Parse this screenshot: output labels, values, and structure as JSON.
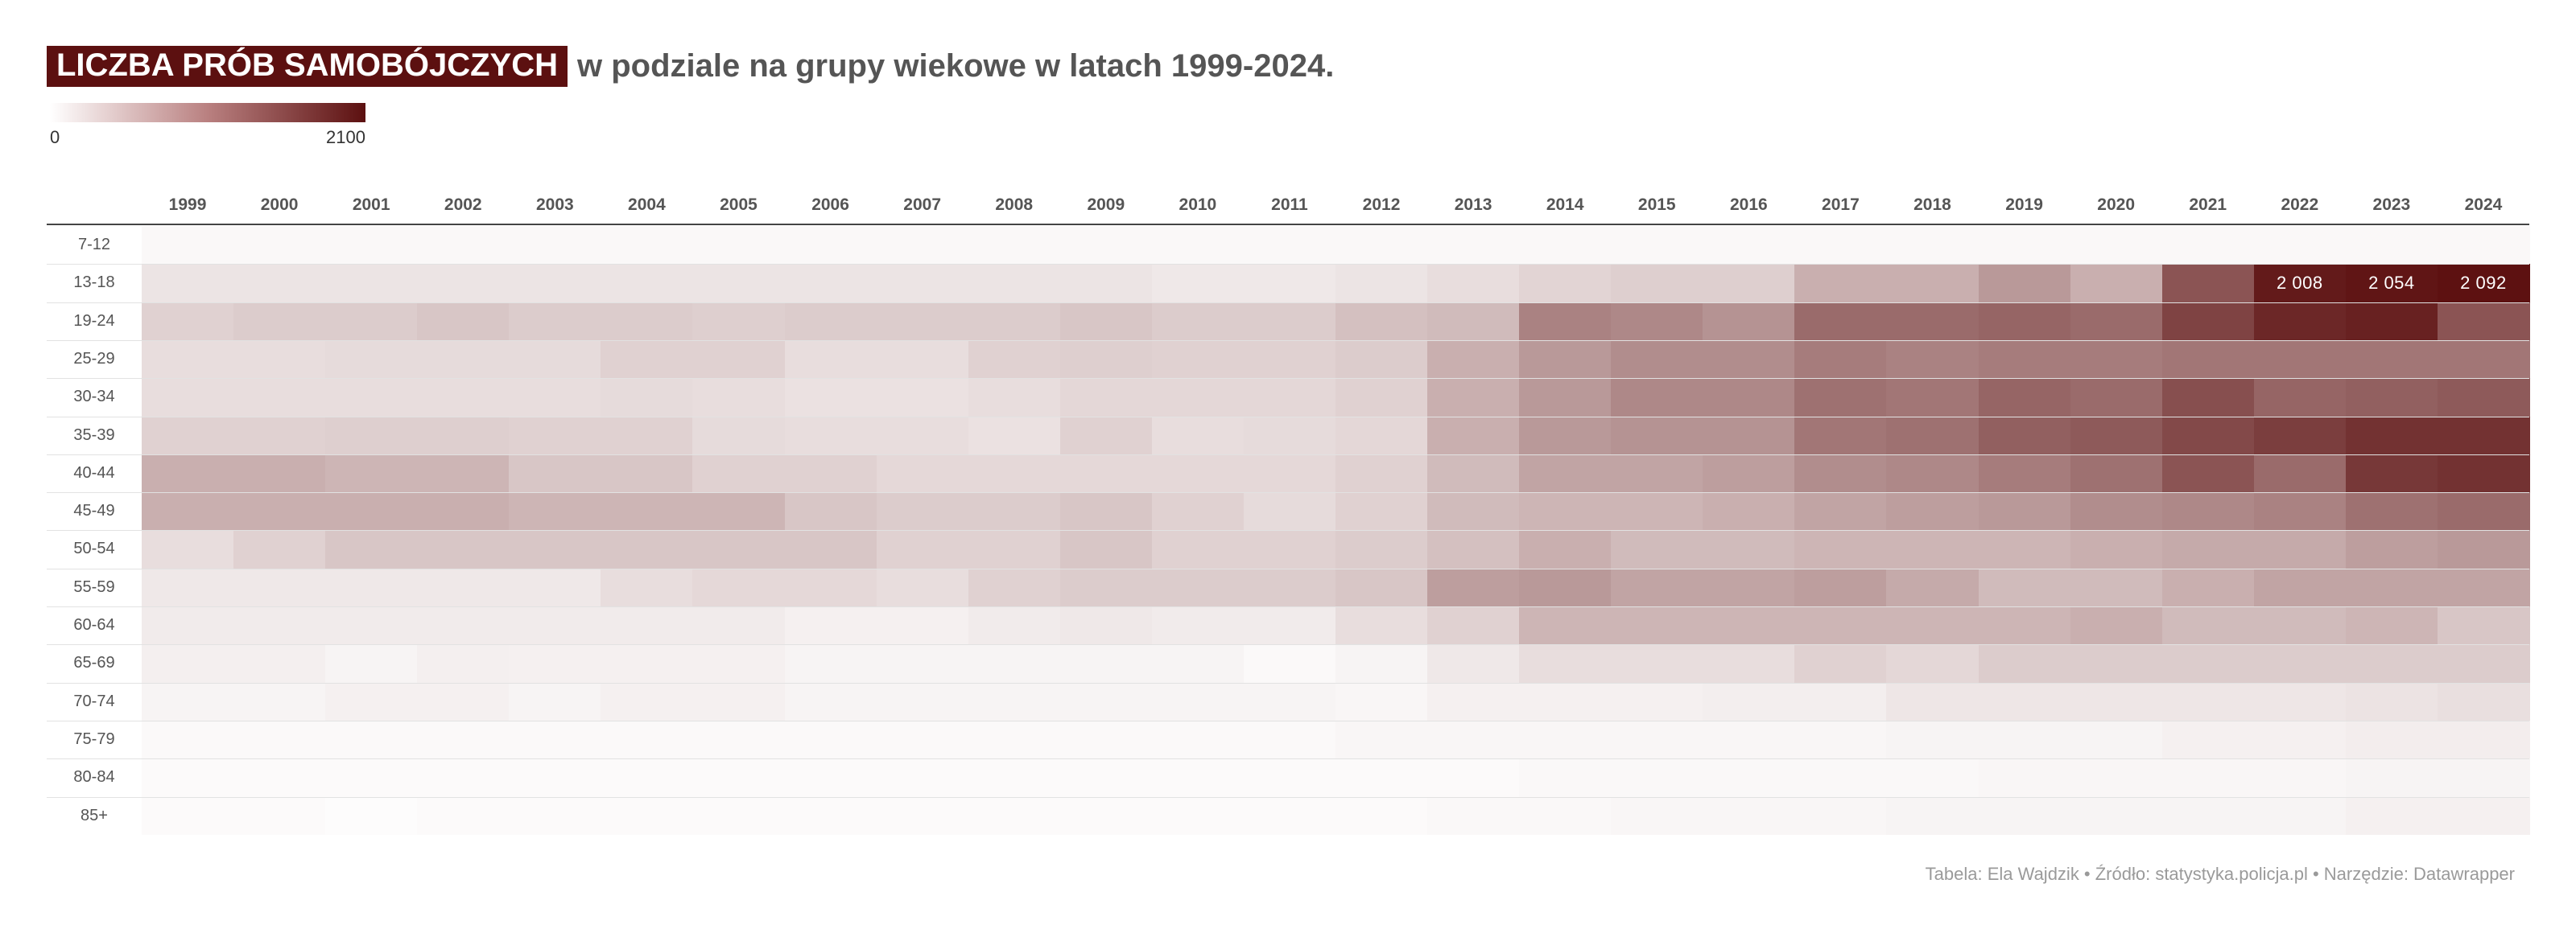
{
  "title": {
    "highlight": "LICZBA PRÓB SAMOBÓJCZYCH",
    "rest": "w podziale na grupy wiekowe w latach 1999-2024."
  },
  "legend": {
    "min_label": "0",
    "max_label": "2100",
    "color_low": "#ffffff",
    "color_high": "#5c1010"
  },
  "footer": "Tabela: Ela Wajdzik • Źródło: statystyka.policja.pl • Narzędzie: Datawrapper",
  "chart_data": {
    "type": "heatmap",
    "title": "LICZBA PRÓB SAMOBÓJCZYCH w podziale na grupy wiekowe w latach 1999-2024.",
    "x": [
      "1999",
      "2000",
      "2001",
      "2002",
      "2003",
      "2004",
      "2005",
      "2006",
      "2007",
      "2008",
      "2009",
      "2010",
      "2011",
      "2012",
      "2013",
      "2014",
      "2015",
      "2016",
      "2017",
      "2018",
      "2019",
      "2020",
      "2021",
      "2022",
      "2023",
      "2024"
    ],
    "y": [
      "7-12",
      "13-18",
      "19-24",
      "25-29",
      "30-34",
      "35-39",
      "40-44",
      "45-49",
      "50-54",
      "55-59",
      "60-64",
      "65-69",
      "70-74",
      "75-79",
      "80-84",
      "85+"
    ],
    "scale": {
      "min": 0,
      "max": 2100,
      "colors": [
        "#ffffff",
        "#5c1010"
      ]
    },
    "values": [
      [
        60,
        60,
        60,
        60,
        60,
        60,
        60,
        60,
        60,
        60,
        60,
        60,
        60,
        60,
        60,
        60,
        60,
        60,
        60,
        60,
        60,
        60,
        60,
        60,
        60,
        60
      ],
      [
        240,
        240,
        240,
        240,
        240,
        240,
        240,
        240,
        240,
        240,
        240,
        200,
        200,
        240,
        300,
        380,
        420,
        420,
        700,
        700,
        900,
        700,
        1500,
        2008,
        2054,
        2092
      ],
      [
        400,
        450,
        450,
        500,
        450,
        450,
        420,
        450,
        450,
        450,
        500,
        450,
        450,
        550,
        600,
        1100,
        1050,
        950,
        1300,
        1300,
        1350,
        1300,
        1650,
        1900,
        1950,
        1500
      ],
      [
        300,
        300,
        320,
        320,
        320,
        400,
        400,
        300,
        300,
        400,
        420,
        400,
        400,
        450,
        700,
        900,
        1000,
        1000,
        1150,
        1100,
        1150,
        1150,
        1200,
        1200,
        1200,
        1200
      ],
      [
        300,
        300,
        300,
        300,
        300,
        320,
        300,
        260,
        260,
        300,
        350,
        350,
        350,
        400,
        700,
        900,
        1050,
        1050,
        1250,
        1200,
        1350,
        1300,
        1550,
        1350,
        1400,
        1450
      ],
      [
        400,
        400,
        420,
        420,
        400,
        400,
        320,
        300,
        300,
        260,
        400,
        300,
        320,
        350,
        700,
        900,
        950,
        950,
        1200,
        1250,
        1400,
        1450,
        1600,
        1700,
        1800,
        1800
      ],
      [
        700,
        700,
        650,
        650,
        500,
        500,
        400,
        400,
        340,
        340,
        340,
        340,
        340,
        400,
        600,
        800,
        800,
        850,
        1000,
        1050,
        1150,
        1250,
        1500,
        1300,
        1750,
        1800
      ],
      [
        700,
        700,
        700,
        700,
        650,
        650,
        650,
        500,
        450,
        450,
        500,
        400,
        320,
        400,
        600,
        650,
        650,
        700,
        800,
        850,
        900,
        1000,
        1050,
        1100,
        1250,
        1300
      ],
      [
        300,
        400,
        500,
        500,
        500,
        500,
        500,
        500,
        400,
        400,
        500,
        400,
        400,
        450,
        550,
        700,
        600,
        600,
        650,
        650,
        650,
        700,
        750,
        750,
        850,
        900
      ],
      [
        200,
        200,
        200,
        200,
        200,
        300,
        340,
        340,
        300,
        400,
        450,
        450,
        450,
        500,
        850,
        900,
        800,
        800,
        850,
        750,
        600,
        600,
        700,
        800,
        800,
        800
      ],
      [
        180,
        180,
        180,
        180,
        180,
        180,
        180,
        130,
        130,
        180,
        200,
        180,
        180,
        300,
        400,
        650,
        650,
        650,
        650,
        650,
        650,
        700,
        600,
        600,
        650,
        500
      ],
      [
        140,
        140,
        100,
        140,
        130,
        130,
        130,
        100,
        100,
        100,
        100,
        100,
        50,
        100,
        200,
        300,
        300,
        300,
        400,
        350,
        450,
        450,
        450,
        450,
        450,
        450
      ],
      [
        100,
        100,
        130,
        130,
        100,
        130,
        130,
        100,
        100,
        100,
        100,
        100,
        100,
        80,
        130,
        130,
        130,
        150,
        150,
        220,
        220,
        220,
        220,
        220,
        250,
        280
      ],
      [
        50,
        50,
        50,
        50,
        50,
        50,
        50,
        50,
        50,
        50,
        50,
        50,
        50,
        80,
        80,
        80,
        80,
        80,
        80,
        100,
        100,
        100,
        130,
        130,
        160,
        160
      ],
      [
        40,
        40,
        40,
        40,
        40,
        40,
        40,
        40,
        40,
        40,
        40,
        40,
        40,
        40,
        40,
        60,
        60,
        60,
        60,
        60,
        80,
        80,
        80,
        80,
        100,
        100
      ],
      [
        40,
        40,
        30,
        40,
        40,
        40,
        40,
        40,
        40,
        40,
        40,
        40,
        40,
        40,
        60,
        60,
        80,
        80,
        80,
        100,
        100,
        100,
        100,
        100,
        130,
        130
      ]
    ],
    "annotations": [
      {
        "row": "13-18",
        "column": "2022",
        "text": "2 008"
      },
      {
        "row": "13-18",
        "column": "2023",
        "text": "2 054"
      },
      {
        "row": "13-18",
        "column": "2024",
        "text": "2 092"
      }
    ]
  }
}
